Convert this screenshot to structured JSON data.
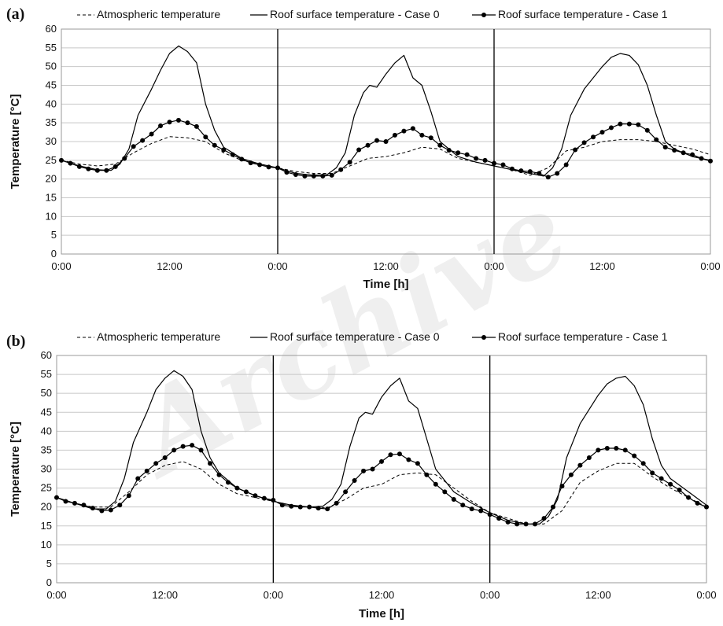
{
  "chart_data": [
    {
      "type": "line",
      "panel_label": "(a)",
      "xlabel": "Time [h]",
      "ylabel": "Temperature [°C]",
      "ylim": [
        0,
        60
      ],
      "yticks": [
        0,
        5,
        10,
        15,
        20,
        25,
        30,
        35,
        40,
        45,
        50,
        55,
        60
      ],
      "xlim": [
        0,
        72
      ],
      "xticks": [
        0,
        12,
        24,
        36,
        48,
        60,
        72
      ],
      "xtick_labels": [
        "0:00",
        "12:00",
        "0:00",
        "12:00",
        "0:00",
        "12:00",
        "0:00"
      ],
      "day_dividers": [
        24,
        48
      ],
      "grid": "horizontal",
      "legend_position": "top",
      "series": [
        {
          "name": "Atmospheric temperature",
          "style": "dashed",
          "x": [
            0,
            2,
            4,
            6,
            8,
            10,
            12,
            14,
            16,
            18,
            20,
            22,
            24,
            26,
            28,
            30,
            32,
            34,
            36,
            38,
            40,
            42,
            44,
            46,
            48,
            50,
            52,
            54,
            56,
            58,
            60,
            62,
            64,
            66,
            68,
            70,
            72
          ],
          "y": [
            25.0,
            24.0,
            23.5,
            24.0,
            27.0,
            29.5,
            31.3,
            31.0,
            30.0,
            27.0,
            25.0,
            24.0,
            23.0,
            22.0,
            21.5,
            21.5,
            23.5,
            25.5,
            26.0,
            27.0,
            28.5,
            28.0,
            25.5,
            24.5,
            23.5,
            22.5,
            21.0,
            23.0,
            27.5,
            28.5,
            30.0,
            30.5,
            30.5,
            30.0,
            29.0,
            28.0,
            26.5
          ]
        },
        {
          "name": "Roof surface temperature - Case 0",
          "style": "solid",
          "x": [
            0,
            2,
            4,
            5.5,
            6.5,
            7.5,
            8.5,
            10,
            11,
            12,
            13,
            14,
            15,
            16,
            17,
            18,
            20,
            22,
            24,
            26,
            28,
            29.5,
            30.5,
            31.5,
            32.5,
            33.5,
            34.2,
            35,
            36,
            37,
            38,
            39,
            40,
            41,
            42,
            44,
            46,
            48,
            50,
            52,
            53.5,
            54.5,
            55.5,
            56.5,
            58,
            60,
            61,
            62,
            63,
            64,
            65,
            66,
            67,
            68,
            70,
            72
          ],
          "y": [
            25.0,
            23.5,
            22.5,
            22.3,
            24.0,
            28.0,
            37.0,
            44.0,
            49.0,
            53.5,
            55.5,
            54.0,
            51.0,
            40.0,
            33.0,
            28.5,
            25.5,
            24.0,
            23.0,
            21.5,
            21.0,
            21.2,
            23.0,
            27.0,
            37.0,
            43.0,
            45.0,
            44.5,
            48.0,
            51.0,
            53.0,
            47.0,
            45.0,
            38.0,
            30.0,
            26.0,
            24.5,
            23.5,
            22.5,
            21.5,
            20.8,
            23.0,
            28.0,
            37.0,
            44.0,
            50.0,
            52.5,
            53.5,
            53.0,
            50.5,
            45.0,
            37.0,
            30.0,
            28.0,
            26.0,
            25.0
          ]
        },
        {
          "name": "Roof surface temperature - Case 1",
          "style": "solid-markers",
          "x": [
            0,
            1,
            2,
            3,
            4,
            5,
            6,
            7,
            8,
            9,
            10,
            11,
            12,
            13,
            14,
            15,
            16,
            17,
            18,
            19,
            20,
            21,
            22,
            23,
            24,
            25,
            26,
            27,
            28,
            29,
            30,
            31,
            32,
            33,
            34,
            35,
            36,
            37,
            38,
            39,
            40,
            41,
            42,
            43,
            44,
            45,
            46,
            47,
            48,
            49,
            50,
            51,
            52,
            53,
            54,
            55,
            56,
            57,
            58,
            59,
            60,
            61,
            62,
            63,
            64,
            65,
            66,
            67,
            68,
            69,
            70,
            71,
            72
          ],
          "y": [
            25.0,
            24.2,
            23.3,
            22.7,
            22.3,
            22.3,
            23.3,
            25.5,
            28.7,
            30.3,
            32.0,
            34.2,
            35.2,
            35.7,
            35.0,
            34.0,
            31.2,
            29.0,
            27.8,
            26.5,
            25.3,
            24.3,
            23.8,
            23.2,
            23.0,
            21.8,
            21.2,
            20.8,
            20.8,
            20.8,
            21.0,
            22.5,
            24.5,
            27.8,
            29.0,
            30.3,
            30.0,
            31.7,
            32.8,
            33.5,
            31.7,
            31.0,
            29.0,
            27.7,
            27.0,
            26.5,
            25.5,
            25.0,
            24.2,
            23.8,
            22.7,
            22.2,
            22.0,
            21.5,
            20.5,
            21.5,
            23.8,
            27.8,
            29.7,
            31.2,
            32.5,
            33.7,
            34.7,
            34.7,
            34.5,
            33.0,
            30.5,
            28.5,
            27.7,
            27.0,
            26.5,
            25.5,
            24.8
          ]
        }
      ]
    },
    {
      "type": "line",
      "panel_label": "(b)",
      "xlabel": "Time [h]",
      "ylabel": "Temperature [°C]",
      "ylim": [
        0,
        60
      ],
      "yticks": [
        0,
        5,
        10,
        15,
        20,
        25,
        30,
        35,
        40,
        45,
        50,
        55,
        60
      ],
      "xlim": [
        0,
        72
      ],
      "xticks": [
        0,
        12,
        24,
        36,
        48,
        60,
        72
      ],
      "xtick_labels": [
        "0:00",
        "12:00",
        "0:00",
        "12:00",
        "0:00",
        "12:00",
        "0:00"
      ],
      "day_dividers": [
        24,
        48
      ],
      "grid": "horizontal",
      "legend_position": "top",
      "series": [
        {
          "name": "Atmospheric temperature",
          "style": "dashed",
          "x": [
            0,
            2,
            4,
            6,
            8,
            10,
            12,
            14,
            16,
            18,
            20,
            22,
            24,
            26,
            28,
            30,
            32,
            34,
            36,
            38,
            40,
            42,
            44,
            46,
            48,
            50,
            52,
            54,
            56,
            58,
            60,
            62,
            64,
            66,
            68,
            70,
            72
          ],
          "y": [
            22.5,
            21.0,
            20.0,
            20.0,
            24.0,
            28.5,
            31.0,
            32.0,
            30.0,
            26.0,
            23.5,
            22.5,
            21.5,
            20.3,
            20.0,
            19.8,
            22.0,
            25.0,
            26.0,
            28.5,
            29.0,
            28.5,
            25.0,
            21.5,
            18.5,
            17.0,
            15.5,
            15.5,
            19.0,
            26.5,
            29.5,
            31.5,
            31.5,
            28.0,
            25.0,
            22.5,
            20.0
          ]
        },
        {
          "name": "Roof surface temperature - Case 0",
          "style": "solid",
          "x": [
            0,
            2,
            4,
            5.5,
            6.5,
            7.5,
            8.5,
            10,
            11,
            12,
            13,
            14,
            15,
            16,
            17,
            18,
            20,
            22,
            24,
            26,
            28,
            29.5,
            30.5,
            31.5,
            32.5,
            33.5,
            34.2,
            35,
            36,
            37,
            38,
            39,
            40,
            41,
            42,
            44,
            46,
            48,
            50,
            52,
            53.5,
            54.5,
            55.5,
            56.5,
            58,
            60,
            61,
            62,
            63,
            64,
            65,
            66,
            67,
            68,
            70,
            72
          ],
          "y": [
            22.5,
            21.0,
            19.5,
            19.5,
            21.5,
            27.5,
            37.0,
            45.0,
            51.0,
            54.0,
            56.0,
            54.5,
            51.0,
            40.0,
            33.0,
            29.0,
            25.0,
            23.0,
            21.5,
            20.5,
            20.0,
            20.2,
            22.0,
            26.0,
            36.0,
            43.5,
            45.0,
            44.5,
            49.0,
            52.0,
            54.0,
            48.0,
            46.0,
            38.0,
            30.0,
            24.0,
            21.0,
            18.5,
            16.5,
            15.5,
            15.5,
            17.5,
            22.0,
            33.0,
            42.0,
            49.5,
            52.5,
            54.0,
            54.5,
            52.0,
            47.0,
            38.0,
            31.0,
            27.5,
            24.0,
            20.5
          ]
        },
        {
          "name": "Roof surface temperature - Case 1",
          "style": "solid-markers",
          "x": [
            0,
            1,
            2,
            3,
            4,
            5,
            6,
            7,
            8,
            9,
            10,
            11,
            12,
            13,
            14,
            15,
            16,
            17,
            18,
            19,
            20,
            21,
            22,
            23,
            24,
            25,
            26,
            27,
            28,
            29,
            30,
            31,
            32,
            33,
            34,
            35,
            36,
            37,
            38,
            39,
            40,
            41,
            42,
            43,
            44,
            45,
            46,
            47,
            48,
            49,
            50,
            51,
            52,
            53,
            54,
            55,
            56,
            57,
            58,
            59,
            60,
            61,
            62,
            63,
            64,
            65,
            66,
            67,
            68,
            69,
            70,
            71,
            72
          ],
          "y": [
            22.5,
            21.5,
            21.0,
            20.5,
            19.7,
            19.0,
            19.2,
            20.5,
            23.0,
            27.5,
            29.5,
            31.5,
            33.0,
            35.0,
            36.0,
            36.3,
            35.0,
            31.5,
            28.5,
            26.5,
            25.0,
            24.0,
            23.0,
            22.3,
            21.8,
            20.5,
            20.2,
            20.0,
            20.0,
            19.7,
            19.5,
            21.0,
            24.0,
            27.0,
            29.5,
            30.0,
            32.0,
            33.8,
            34.0,
            32.5,
            31.5,
            28.5,
            26.0,
            24.0,
            22.0,
            20.5,
            19.5,
            19.0,
            18.0,
            17.0,
            16.0,
            15.5,
            15.5,
            15.5,
            17.0,
            20.0,
            25.5,
            28.5,
            31.0,
            33.0,
            35.0,
            35.5,
            35.5,
            35.0,
            33.5,
            31.5,
            29.0,
            27.5,
            26.0,
            24.5,
            22.5,
            21.0,
            20.0
          ]
        }
      ]
    }
  ]
}
